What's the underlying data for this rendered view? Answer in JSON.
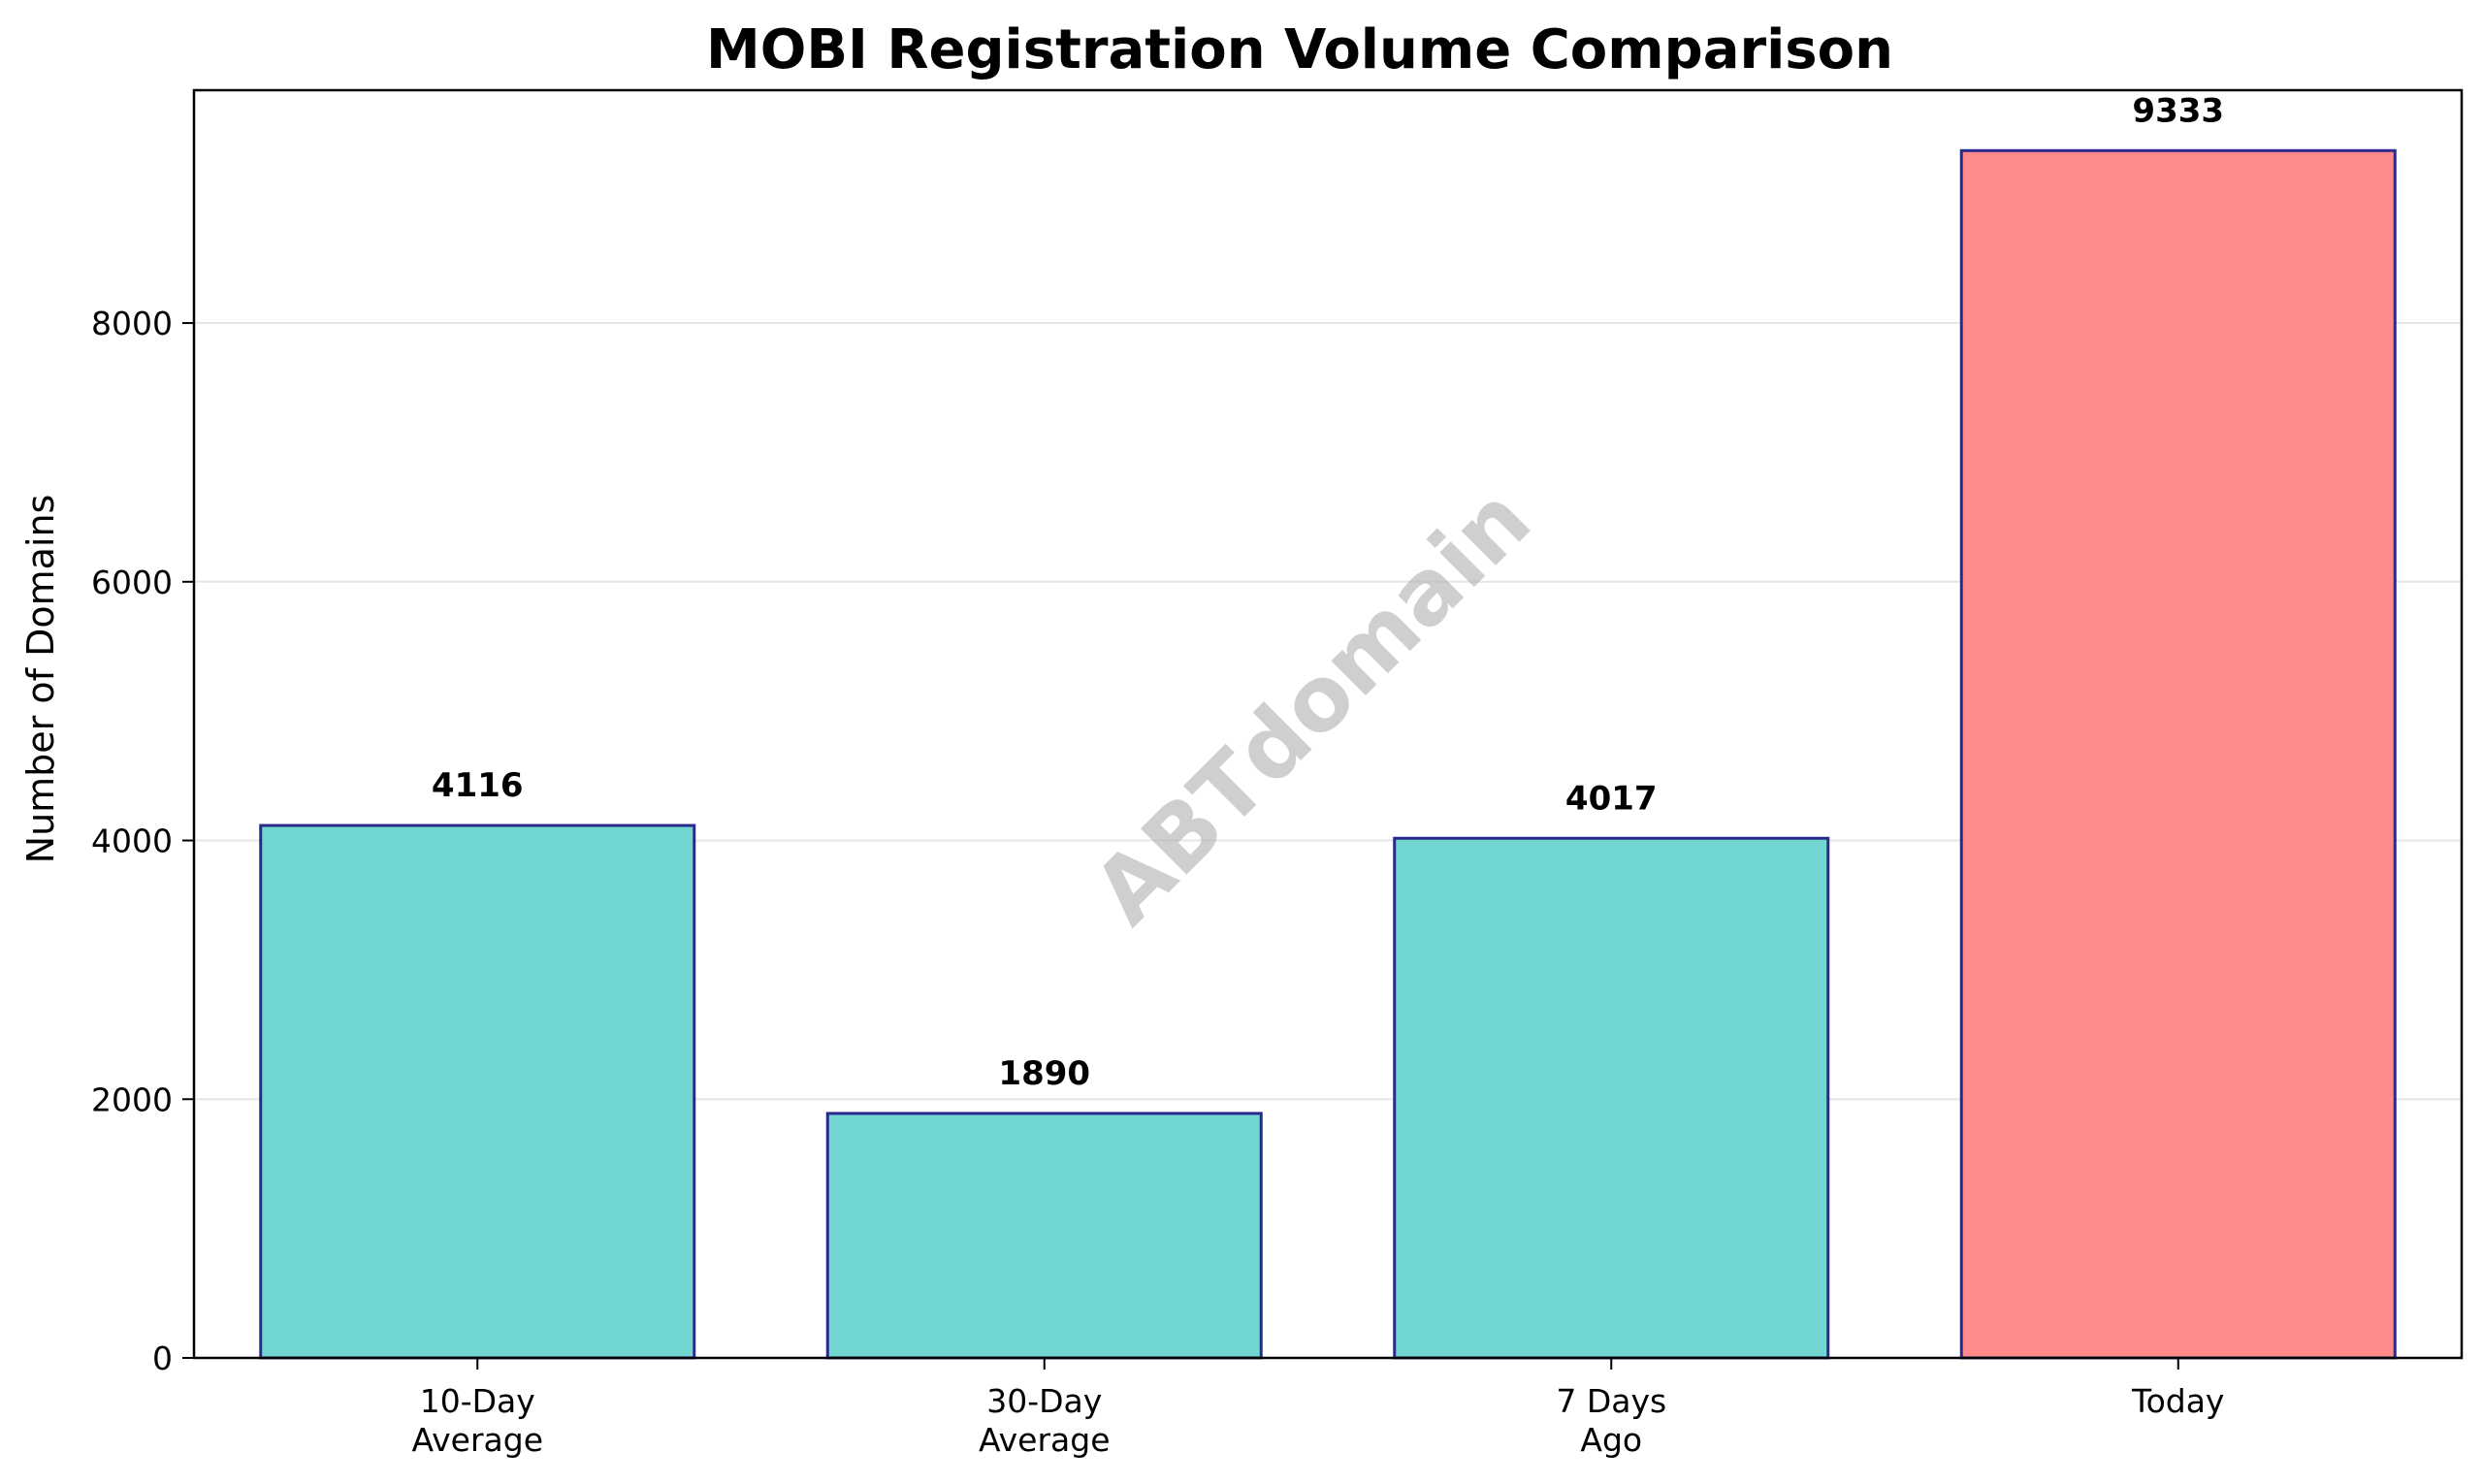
{
  "chart_data": {
    "type": "bar",
    "title": "MOBI Registration Volume Comparison",
    "xlabel": "",
    "ylabel": "Number of Domains",
    "categories": [
      [
        "10-Day",
        "Average"
      ],
      [
        "30-Day",
        "Average"
      ],
      [
        "7 Days",
        "Ago"
      ],
      [
        "Today"
      ]
    ],
    "values": [
      4116,
      1890,
      4017,
      9333
    ],
    "data_labels": [
      "4116",
      "1890",
      "4017",
      "9333"
    ],
    "ylim": [
      0,
      9800
    ],
    "yticks": [
      0,
      2000,
      4000,
      6000,
      8000
    ],
    "ytick_labels": [
      "0",
      "2000",
      "4000",
      "6000",
      "8000"
    ],
    "grid": "y",
    "legend": "none",
    "colors": {
      "bar_default": "#72d6d0",
      "bar_highlight": "#ff8a8a",
      "bar_edge": "#2a2a8c",
      "grid": "#e6e6e6",
      "axis": "#000000"
    },
    "highlight_index": 3
  },
  "watermark": {
    "text": "ABTdomain"
  }
}
